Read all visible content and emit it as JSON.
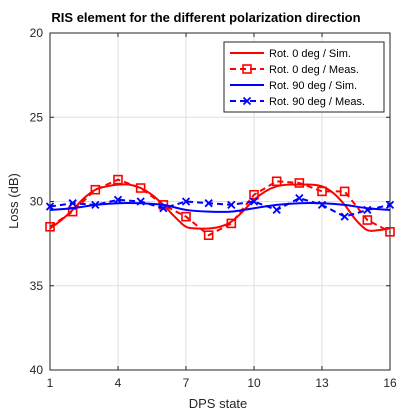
{
  "chart_data": {
    "type": "line",
    "title": "RIS element for the different polarization direction",
    "xlabel": "DPS state",
    "ylabel": "Loss (dB)",
    "xlim": [
      1,
      16
    ],
    "ylim": [
      20,
      40
    ],
    "y_reversed": true,
    "xticks": [
      1,
      4,
      7,
      10,
      13,
      16
    ],
    "xtick_labels": [
      "1",
      "4",
      "7",
      "10",
      "13",
      "16"
    ],
    "yticks": [
      20,
      25,
      30,
      35,
      40
    ],
    "ytick_labels": [
      "20",
      "25",
      "30",
      "35",
      "40"
    ],
    "grid": true,
    "legend_position": "top-right",
    "series": [
      {
        "name": "Rot. 0 deg / Sim.",
        "color": "#ff0000",
        "line_style": "solid",
        "marker": "none",
        "x": [
          1,
          1.5,
          2,
          2.5,
          3,
          3.5,
          4,
          4.5,
          5,
          5.5,
          6,
          6.5,
          7,
          7.5,
          8,
          8.5,
          9,
          9.5,
          10,
          10.5,
          11,
          11.5,
          12,
          12.5,
          13,
          13.5,
          14,
          14.5,
          15,
          15.5,
          16
        ],
        "y": [
          31.6,
          31.1,
          30.5,
          29.8,
          29.3,
          29.1,
          29.0,
          29.0,
          29.2,
          29.6,
          30.2,
          30.9,
          31.5,
          31.6,
          31.6,
          31.5,
          31.2,
          30.6,
          29.9,
          29.4,
          29.1,
          29.0,
          29.0,
          29.0,
          29.1,
          29.5,
          30.2,
          31.1,
          31.7,
          31.7,
          31.6
        ]
      },
      {
        "name": "Rot. 0 deg / Meas.",
        "color": "#ff0000",
        "line_style": "dashed",
        "marker": "square",
        "x": [
          1,
          2,
          3,
          4,
          5,
          6,
          7,
          8,
          9,
          10,
          11,
          12,
          13,
          14,
          15,
          16
        ],
        "y": [
          31.5,
          30.6,
          29.3,
          28.7,
          29.2,
          30.2,
          30.9,
          32.0,
          31.3,
          29.6,
          28.8,
          28.9,
          29.4,
          29.4,
          31.1,
          31.8
        ]
      },
      {
        "name": "Rot. 90 deg / Sim.",
        "color": "#0000ff",
        "line_style": "solid",
        "marker": "none",
        "x": [
          1,
          2,
          3,
          4,
          5,
          6,
          7,
          8,
          9,
          10,
          11,
          12,
          13,
          14,
          15,
          16
        ],
        "y": [
          30.5,
          30.4,
          30.2,
          30.1,
          30.1,
          30.2,
          30.5,
          30.6,
          30.6,
          30.4,
          30.2,
          30.1,
          30.1,
          30.2,
          30.4,
          30.5
        ]
      },
      {
        "name": "Rot. 90 deg / Meas.",
        "color": "#0000ff",
        "line_style": "dashed",
        "marker": "x",
        "x": [
          1,
          2,
          3,
          4,
          5,
          6,
          7,
          8,
          9,
          10,
          11,
          12,
          13,
          14,
          15,
          16
        ],
        "y": [
          30.3,
          30.1,
          30.2,
          29.9,
          30.0,
          30.4,
          30.0,
          30.1,
          30.2,
          30.0,
          30.5,
          29.8,
          30.2,
          30.9,
          30.5,
          30.2
        ]
      }
    ]
  }
}
